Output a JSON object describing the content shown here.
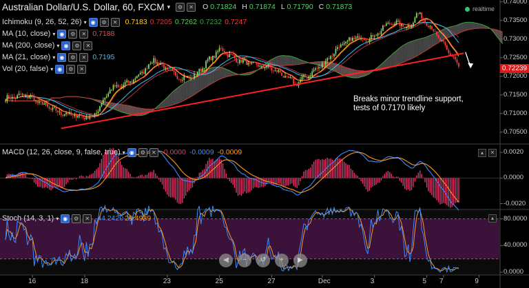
{
  "header": {
    "symbol": "Australian Dollar/U.S. Dollar, 60, FXCM",
    "ohlc": [
      {
        "k": "O",
        "v": "0.71824"
      },
      {
        "k": "H",
        "v": "0.71874"
      },
      {
        "k": "L",
        "v": "0.71790"
      },
      {
        "k": "C",
        "v": "0.71873"
      }
    ],
    "realtime": "realtime"
  },
  "indicators": {
    "ichimoku": {
      "label": "Ichimoku (9, 26, 52, 26)",
      "values": [
        "0.7183",
        "0.7205",
        "0.7262",
        "0.7232",
        "0.7247"
      ],
      "colors": [
        "#ffd21a",
        "#d63b3b",
        "#5fce5f",
        "#3f9e3f",
        "#ff3b3b"
      ]
    },
    "ma10": {
      "label": "MA (10, close)",
      "value": "0.7188",
      "color": "#ff4444"
    },
    "ma200": {
      "label": "MA (200, close)",
      "value": ""
    },
    "ma21": {
      "label": "MA (21, close)",
      "value": "0.7195",
      "color": "#33c6ff"
    },
    "vol": {
      "label": "Vol (20, false)",
      "value": ""
    }
  },
  "macd": {
    "label": "MACD (12, 26, close, 9, false, true)",
    "values": [
      "0.0000",
      "-0.0009",
      "-0.0009"
    ],
    "colors": [
      "#e8336d",
      "#3c8cff",
      "#ff9a1e"
    ]
  },
  "stoch": {
    "label": "Stoch (14, 3, 1)",
    "values": [
      "44.2420",
      "29.4939"
    ],
    "colors": [
      "#3c8cff",
      "#ff9a1e"
    ]
  },
  "annotation": {
    "line1": "Breaks minor trendline support,",
    "line2": "tests of 0.7170 likely"
  },
  "last_price": "0.72239",
  "chart_data": {
    "type": "candlestick",
    "price_axis": {
      "ticks": [
        "0.74000",
        "0.73500",
        "0.73000",
        "0.72500",
        "0.72000",
        "0.71500",
        "0.71000",
        "0.70500"
      ],
      "ylim": [
        0.702,
        0.7405
      ]
    },
    "macd_axis": {
      "ticks": [
        "0.0020",
        "0.0000",
        "-0.0020"
      ],
      "ylim": [
        -0.0024,
        0.0026
      ]
    },
    "stoch_axis": {
      "ticks": [
        "80.0000",
        "40.0000",
        "0.0000"
      ],
      "ylim": [
        -3,
        93
      ],
      "band": [
        20,
        80
      ]
    },
    "x_ticks": [
      {
        "label": "16",
        "i": 16
      },
      {
        "label": "18",
        "i": 47
      },
      {
        "label": "23",
        "i": 96
      },
      {
        "label": "25",
        "i": 127
      },
      {
        "label": "27",
        "i": 158
      },
      {
        "label": "Dec",
        "i": 188
      },
      {
        "label": "3",
        "i": 219
      },
      {
        "label": "5",
        "i": 250
      },
      {
        "label": "7",
        "i": 260
      },
      {
        "label": "9",
        "i": 281
      }
    ],
    "bar_count": 270,
    "anchors": [
      [
        0,
        0.714
      ],
      [
        12,
        0.715
      ],
      [
        20,
        0.713
      ],
      [
        30,
        0.7105
      ],
      [
        40,
        0.7095
      ],
      [
        52,
        0.709
      ],
      [
        62,
        0.7165
      ],
      [
        72,
        0.718
      ],
      [
        80,
        0.7205
      ],
      [
        88,
        0.7245
      ],
      [
        98,
        0.721
      ],
      [
        105,
        0.7195
      ],
      [
        112,
        0.72
      ],
      [
        120,
        0.724
      ],
      [
        128,
        0.7275
      ],
      [
        133,
        0.7255
      ],
      [
        140,
        0.724
      ],
      [
        148,
        0.723
      ],
      [
        156,
        0.7225
      ],
      [
        164,
        0.7205
      ],
      [
        172,
        0.718
      ],
      [
        182,
        0.721
      ],
      [
        190,
        0.724
      ],
      [
        198,
        0.728
      ],
      [
        208,
        0.7305
      ],
      [
        216,
        0.73
      ],
      [
        222,
        0.732
      ],
      [
        228,
        0.7345
      ],
      [
        234,
        0.734
      ],
      [
        240,
        0.733
      ],
      [
        244,
        0.737
      ],
      [
        250,
        0.7345
      ],
      [
        256,
        0.731
      ],
      [
        262,
        0.727
      ],
      [
        266,
        0.725
      ],
      [
        269,
        0.7224
      ]
    ],
    "trendline": {
      "from": [
        33,
        0.706
      ],
      "to": [
        272,
        0.7262
      ],
      "color": "#ff2020"
    },
    "arrow": {
      "from": [
        273,
        0.7265
      ],
      "to": [
        276,
        0.7225
      ],
      "color": "#ffffff"
    }
  }
}
